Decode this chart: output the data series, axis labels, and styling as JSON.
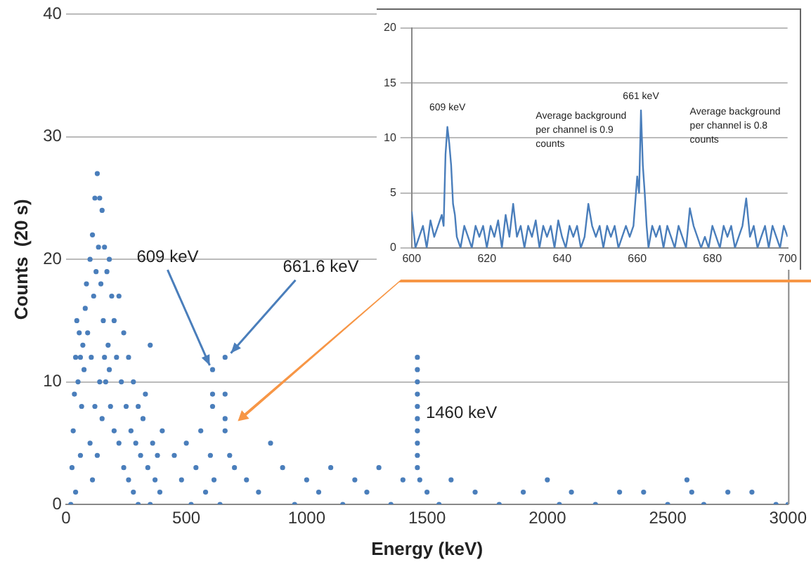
{
  "chart_data": [
    {
      "type": "scatter",
      "xlabel": "Energy (keV)",
      "ylabel": "Counts  (20 s)",
      "xlim": [
        0,
        3000
      ],
      "xticks": [
        0,
        500,
        1000,
        1500,
        2000,
        2500,
        3000
      ],
      "ylim": [
        0,
        40
      ],
      "yticks": [
        0,
        10,
        20,
        30,
        40
      ],
      "grid": "y",
      "marker": "circle",
      "legend": false,
      "series": [
        {
          "color": "#4a7ebb",
          "x": [
            20,
            25,
            30,
            35,
            40,
            45,
            50,
            55,
            60,
            65,
            70,
            75,
            80,
            85,
            90,
            100,
            105,
            110,
            115,
            120,
            125,
            130,
            135,
            140,
            145,
            150,
            155,
            160,
            165,
            170,
            175,
            180,
            185,
            190,
            200,
            210,
            220,
            230,
            240,
            250,
            260,
            270,
            280,
            290,
            300,
            310,
            320,
            330,
            340,
            350,
            360,
            370,
            380,
            390,
            400,
            100,
            120,
            140,
            160,
            180,
            200,
            220,
            240,
            260,
            280,
            300,
            350,
            150,
            130,
            110,
            60,
            40,
            450,
            480,
            500,
            520,
            540,
            560,
            580,
            600,
            609,
            609,
            609,
            615,
            640,
            661,
            661,
            661,
            661,
            680,
            700,
            750,
            800,
            850,
            900,
            950,
            1000,
            1050,
            1100,
            1150,
            1200,
            1250,
            1300,
            1350,
            1400,
            1460,
            1460,
            1460,
            1460,
            1460,
            1460,
            1460,
            1460,
            1460,
            1460,
            1470,
            1500,
            1550,
            1600,
            1700,
            1800,
            1900,
            2000,
            2050,
            2100,
            2200,
            2300,
            2400,
            2500,
            2580,
            2600,
            2650,
            2750,
            2850,
            2950,
            3000
          ],
          "values": [
            0,
            3,
            6,
            9,
            12,
            15,
            10,
            14,
            12,
            8,
            13,
            11,
            16,
            18,
            14,
            20,
            12,
            22,
            17,
            25,
            19,
            27,
            21,
            25,
            18,
            24,
            15,
            21,
            10,
            19,
            13,
            20,
            8,
            17,
            15,
            12,
            17,
            10,
            14,
            8,
            12,
            6,
            10,
            5,
            8,
            4,
            7,
            9,
            3,
            13,
            5,
            2,
            4,
            1,
            6,
            5,
            8,
            10,
            12,
            11,
            6,
            5,
            3,
            2,
            1,
            0,
            0,
            7,
            4,
            2,
            4,
            1,
            4,
            2,
            5,
            0,
            3,
            6,
            1,
            4,
            11,
            9,
            8,
            2,
            0,
            12,
            9,
            7,
            6,
            4,
            3,
            2,
            1,
            5,
            3,
            0,
            2,
            1,
            3,
            0,
            2,
            1,
            3,
            0,
            2,
            12,
            11,
            10,
            9,
            8,
            7,
            6,
            5,
            4,
            3,
            2,
            1,
            0,
            2,
            1,
            0,
            1,
            2,
            0,
            1,
            0,
            1,
            1,
            0,
            2,
            1,
            0,
            1,
            1,
            0,
            0
          ]
        }
      ],
      "annotations": [
        {
          "text": "609 keV",
          "x": 609,
          "y": 11
        },
        {
          "text": "661.6 keV",
          "x": 661.6,
          "y": 12
        },
        {
          "text": "1460 keV",
          "x": 1460,
          "y": 12
        }
      ]
    },
    {
      "type": "line",
      "xlim": [
        600,
        700
      ],
      "xticks": [
        600,
        620,
        640,
        660,
        680,
        700
      ],
      "ylim": [
        0,
        20
      ],
      "yticks": [
        0,
        5,
        10,
        15,
        20
      ],
      "grid": "y",
      "marker": "none",
      "legend": false,
      "series": [
        {
          "color": "#4a7ebb",
          "x": [
            600,
            601,
            602,
            603,
            604,
            605,
            606,
            607,
            608,
            608.5,
            609,
            609.5,
            610,
            610.5,
            611,
            611.5,
            612,
            613,
            614,
            615,
            616,
            617,
            618,
            619,
            620,
            621,
            622,
            623,
            624,
            625,
            626,
            627,
            628,
            629,
            630,
            631,
            632,
            633,
            634,
            635,
            636,
            637,
            638,
            639,
            640,
            641,
            642,
            643,
            644,
            645,
            646,
            647,
            648,
            649,
            650,
            651,
            652,
            653,
            654,
            655,
            656,
            657,
            658,
            659,
            660,
            660.5,
            661,
            661.5,
            662,
            662.5,
            663,
            664,
            665,
            666,
            667,
            668,
            669,
            670,
            671,
            672,
            673,
            674,
            675,
            676,
            677,
            678,
            679,
            680,
            681,
            682,
            683,
            684,
            685,
            686,
            687,
            688,
            689,
            690,
            691,
            692,
            693,
            694,
            695,
            696,
            697,
            698,
            699,
            700
          ],
          "values": [
            3.3,
            0,
            1,
            2,
            0,
            2.5,
            1,
            2,
            3,
            2,
            8.5,
            11,
            9.5,
            7.5,
            4,
            3,
            1,
            0,
            2,
            1,
            0,
            2,
            1,
            2,
            0,
            2,
            1,
            2.5,
            0,
            3,
            1,
            4,
            1,
            2,
            0,
            2,
            1,
            2.5,
            0,
            2,
            1,
            2,
            0,
            2.5,
            1,
            0,
            2,
            1,
            2,
            0,
            1,
            4,
            2,
            1,
            2,
            0,
            2,
            1,
            2,
            0,
            1,
            2,
            1,
            2,
            6.5,
            5,
            12.5,
            7.5,
            5,
            2,
            0,
            2,
            1,
            2,
            0,
            2,
            1,
            0,
            2,
            1,
            0,
            3.6,
            2,
            1,
            0,
            1,
            0,
            2,
            1,
            0,
            2,
            1,
            2,
            0,
            1,
            2,
            4.5,
            1,
            2,
            0,
            1,
            2,
            0,
            2,
            1,
            0,
            2,
            1
          ]
        }
      ],
      "annotations": [
        {
          "text": "609 keV",
          "x": 609.5,
          "y": 11
        },
        {
          "text": "661 keV",
          "x": 661,
          "y": 12.5
        },
        "Average background per channel is 0.9 counts",
        "Average background per channel is 0.8 counts"
      ]
    }
  ]
}
